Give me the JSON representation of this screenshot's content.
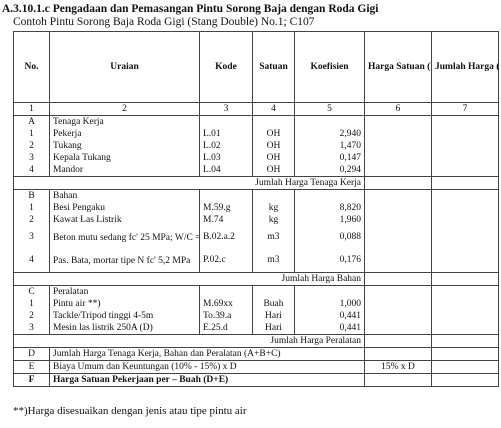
{
  "title": "A.3.10.1.c Pengadaan dan Pemasangan Pintu Sorong Baja dengan Roda Gigi",
  "subtitle": "Contoh Pintu Sorong Baja Roda Gigi (Stang Double) No.1; C107",
  "headers": {
    "no": "No.",
    "uraian": "Uraian",
    "kode": "Kode",
    "satuan": "Satuan",
    "koefisien": "Koefisien",
    "harga_satuan": "Harga Satuan (Rp)",
    "jumlah_harga": "Jumlah Harga (Rp)"
  },
  "index_row": [
    "1",
    "2",
    "3",
    "4",
    "5",
    "6",
    "7"
  ],
  "section_a": {
    "letter": "A",
    "name": "Tenaga Kerja",
    "items": [
      {
        "no": "1",
        "uraian": "Pekerja",
        "kode": "L.01",
        "satuan": "OH",
        "koef": "2,940"
      },
      {
        "no": "2",
        "uraian": "Tukang",
        "kode": "L.02",
        "satuan": "OH",
        "koef": "1,470"
      },
      {
        "no": "3",
        "uraian": "Kepala Tukang",
        "kode": "L.03",
        "satuan": "OH",
        "koef": "0,147"
      },
      {
        "no": "4",
        "uraian": "Mandor",
        "kode": "L.04",
        "satuan": "OH",
        "koef": "0,294"
      }
    ],
    "subtotal": "Jumlah Harga Tenaga Kerja"
  },
  "section_b": {
    "letter": "B",
    "name": "Bahan",
    "items": [
      {
        "no": "1",
        "uraian": "Besi Pengaku",
        "kode": "M.59.g",
        "satuan": "kg",
        "koef": "8,820"
      },
      {
        "no": "2",
        "uraian": "Kawat Las Listrik",
        "kode": "M.74",
        "satuan": "kg",
        "koef": "1,960"
      },
      {
        "no": "3",
        "uraian": "Beton mutu sedang fc' 25 MPa; W/C = 0,509",
        "kode": "B.02.a.2",
        "satuan": "m3",
        "koef": "0,088"
      },
      {
        "no": "4",
        "uraian": "Pas. Bata, mortar tipe N fc' 5,2 MPa",
        "kode": "P.02.c",
        "satuan": "m3",
        "koef": "0,176"
      }
    ],
    "subtotal": "Jumlah Harga Bahan"
  },
  "section_c": {
    "letter": "C",
    "name": "Peralatan",
    "items": [
      {
        "no": "1",
        "uraian": "Pintu air **)",
        "kode": "M.69xx",
        "satuan": "Buah",
        "koef": "1,000"
      },
      {
        "no": "2",
        "uraian": "Tackle/Tripod tinggi 4-5m",
        "kode": "To.39.a",
        "satuan": "Hari",
        "koef": "0,441"
      },
      {
        "no": "3",
        "uraian": "Mesin las listrik 250A (D)",
        "kode": "E.25.d",
        "satuan": "Hari",
        "koef": "0,441"
      }
    ],
    "subtotal": "Jumlah Harga Peralatan"
  },
  "row_d": {
    "letter": "D",
    "text": "Jumlah Harga Tenaga Kerja, Bahan dan Peralatan (A+B+C)"
  },
  "row_e": {
    "letter": "E",
    "text": "Biaya Umum dan Keuntungan (10% - 15%) x D",
    "harga": "15% x D"
  },
  "row_f": {
    "letter": "F",
    "text": "Harga Satuan Pekerjaan per – Buah (D+E)"
  },
  "footnote": "**)Harga disesuaikan dengan jenis atau tipe pintu air"
}
